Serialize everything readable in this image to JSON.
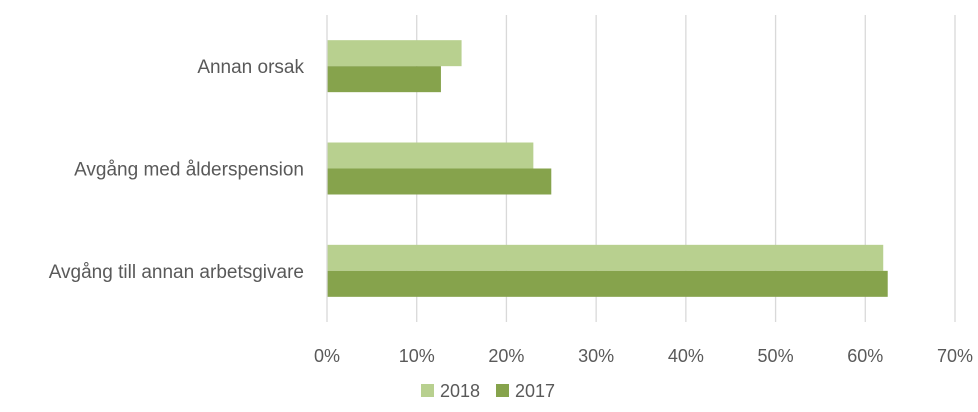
{
  "chart_data": {
    "type": "bar",
    "orientation": "horizontal",
    "categories": [
      "Annan orsak",
      "Avgång med ålderspension",
      "Avgång till annan arbetsgivare"
    ],
    "series": [
      {
        "name": "2018",
        "values": [
          15,
          23,
          62
        ],
        "color": "#b8d08f"
      },
      {
        "name": "2017",
        "values": [
          12.7,
          25,
          62.5
        ],
        "color": "#86a34c"
      }
    ],
    "xlim": [
      0,
      70
    ],
    "xticks": [
      0,
      10,
      20,
      30,
      40,
      50,
      60,
      70
    ],
    "tick_format": "{}%",
    "grid": true,
    "gridline_color": "#d9d9d9",
    "legend": "bottom-center",
    "title": "",
    "xlabel": "",
    "ylabel": ""
  }
}
